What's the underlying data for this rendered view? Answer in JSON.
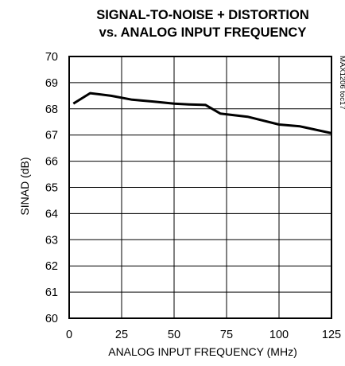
{
  "chart_data": {
    "type": "line",
    "title_line1": "SIGNAL-TO-NOISE + DISTORTION",
    "title_line2": "vs. ANALOG INPUT FREQUENCY",
    "xlabel": "ANALOG INPUT FREQUENCY (MHz)",
    "ylabel": "SINAD (dB)",
    "annotation": "MAX1206 toc17",
    "xlim": [
      0,
      125
    ],
    "ylim": [
      60,
      70
    ],
    "xticks": [
      0,
      25,
      50,
      75,
      100,
      125
    ],
    "yticks": [
      60,
      61,
      62,
      63,
      64,
      65,
      66,
      67,
      68,
      69,
      70
    ],
    "grid": true,
    "series": [
      {
        "x": [
          2,
          10,
          20,
          30,
          40,
          50,
          57,
          65,
          72,
          85,
          100,
          110,
          125
        ],
        "y": [
          68.2,
          68.6,
          68.5,
          68.35,
          68.28,
          68.2,
          68.17,
          68.15,
          67.82,
          67.7,
          67.4,
          67.33,
          67.07
        ]
      }
    ]
  }
}
